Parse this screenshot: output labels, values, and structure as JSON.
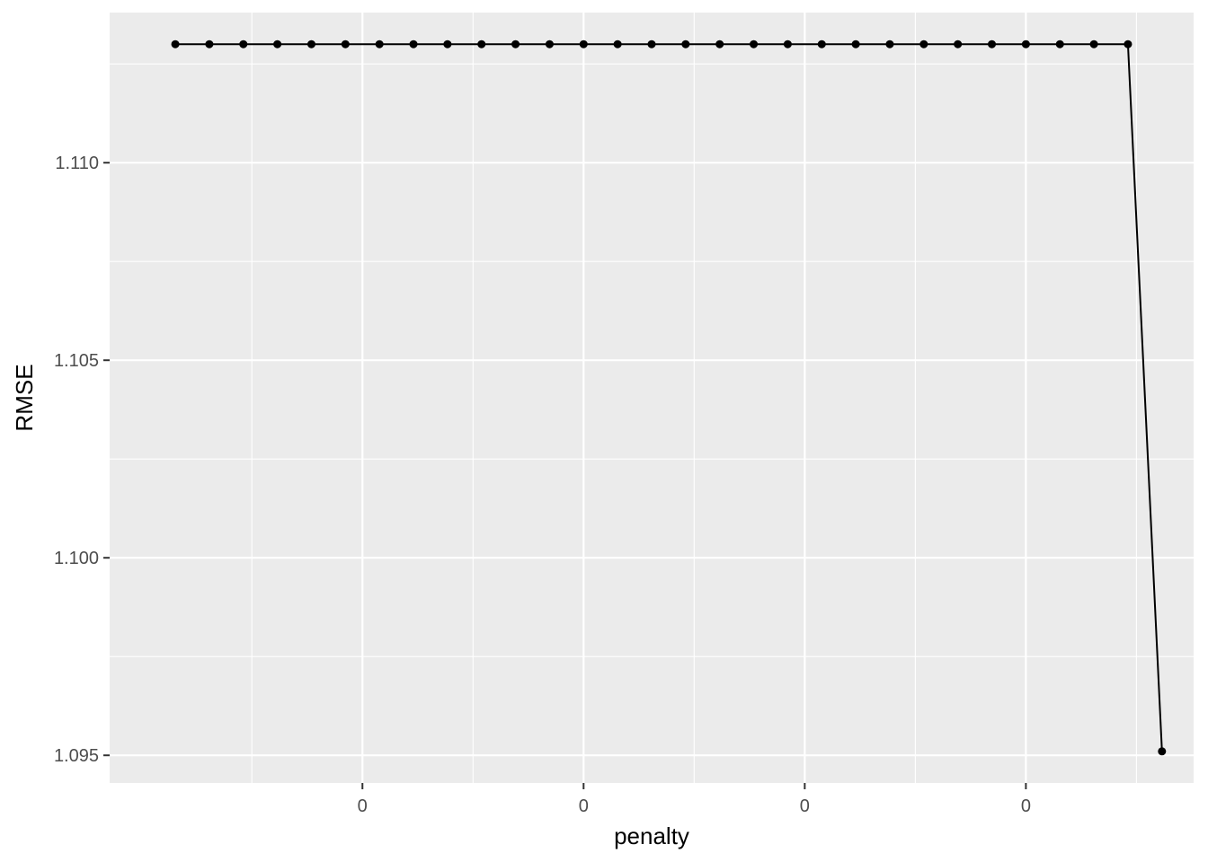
{
  "chart_data": {
    "type": "line",
    "title": "",
    "xlabel": "penalty",
    "ylabel": "RMSE",
    "x_ticks": [
      {
        "value": 6.5,
        "label": "0"
      },
      {
        "value": 13,
        "label": "0"
      },
      {
        "value": 19.5,
        "label": "0"
      },
      {
        "value": 26,
        "label": "0"
      }
    ],
    "y_ticks": [
      {
        "value": 1.095,
        "label": "1.095"
      },
      {
        "value": 1.1,
        "label": "1.100"
      },
      {
        "value": 1.105,
        "label": "1.105"
      },
      {
        "value": 1.11,
        "label": "1.110"
      }
    ],
    "xlim": [
      -0.93,
      30.93
    ],
    "ylim": [
      1.0943,
      1.1138
    ],
    "grid": true,
    "panel_background": "#ebebeb",
    "grid_color": "#ffffff",
    "line_color": "#000000",
    "series": [
      {
        "x": [
          1,
          2,
          3,
          4,
          5,
          6,
          7,
          8,
          9,
          10,
          11,
          12,
          13,
          14,
          15,
          16,
          17,
          18,
          19,
          20,
          21,
          22,
          23,
          24,
          25,
          26,
          27,
          28,
          29,
          30
        ],
        "values": [
          1.113,
          1.113,
          1.113,
          1.113,
          1.113,
          1.113,
          1.113,
          1.113,
          1.113,
          1.113,
          1.113,
          1.113,
          1.113,
          1.113,
          1.113,
          1.113,
          1.113,
          1.113,
          1.113,
          1.113,
          1.113,
          1.113,
          1.113,
          1.113,
          1.113,
          1.113,
          1.113,
          1.113,
          1.113,
          1.0951
        ]
      }
    ]
  }
}
